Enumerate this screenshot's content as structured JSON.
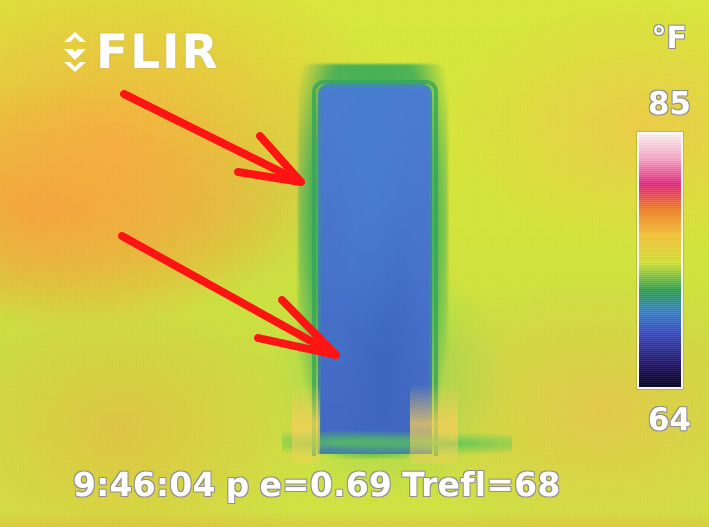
{
  "thermal_view": {
    "brand": "FLIR",
    "unit_label": "°F",
    "scale": {
      "max": "85",
      "min": "64"
    },
    "status": {
      "time": "9:46:04",
      "mode": "p",
      "emissivity": "e=0.69",
      "reflected_temperature": "Trefl=68"
    },
    "colors": {
      "arrow": "#ff1414",
      "door": "#4a78cd",
      "edge": "#2ea45a",
      "background": "#d7e63a"
    },
    "icons": {
      "logo": "flir-logo-icon",
      "annotation_arrow": "red-arrow-icon"
    }
  }
}
